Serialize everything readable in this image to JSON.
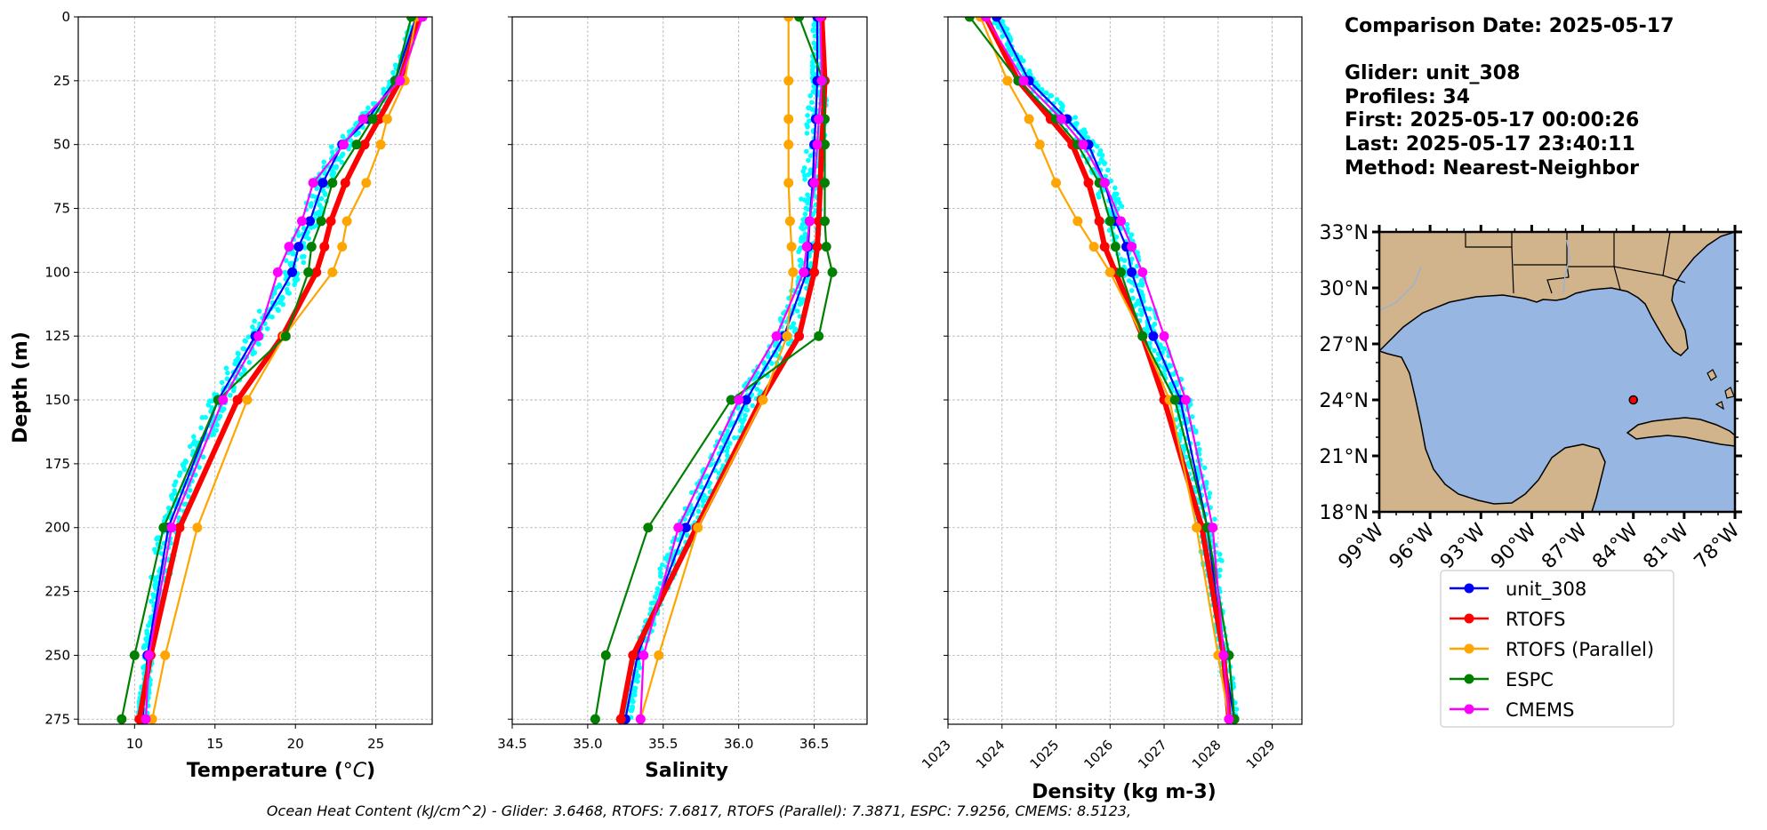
{
  "info": {
    "comparison_date": "Comparison Date: 2025-05-17",
    "glider": "Glider: unit_308",
    "profiles": "Profiles: 34",
    "first": "First: 2025-05-17 00:00:26",
    "last": "Last: 2025-05-17 23:40:11",
    "method": "Method: Nearest-Neighbor"
  },
  "footer": "Ocean Heat Content (kJ/cm^2) - Glider: 3.6468,  RTOFS: 7.6817,  RTOFS (Parallel): 7.3871,  ESPC: 7.9256,  CMEMS: 8.5123,",
  "colors": {
    "glider_scatter": "#00ffff",
    "unit_308": "#0000ff",
    "RTOFS": "#ff0000",
    "RTOFS_parallel": "#ffa500",
    "ESPC": "#008000",
    "CMEMS": "#ff00ff",
    "land": "#d2b48c",
    "ocean": "#97b6e1",
    "grid": "#b0b0b0"
  },
  "legend": [
    {
      "label": "unit_308",
      "color": "#0000ff"
    },
    {
      "label": "RTOFS",
      "color": "#ff0000"
    },
    {
      "label": "RTOFS (Parallel)",
      "color": "#ffa500"
    },
    {
      "label": "ESPC",
      "color": "#008000"
    },
    {
      "label": "CMEMS",
      "color": "#ff00ff"
    }
  ],
  "map": {
    "lat_ticks": [
      "33°N",
      "30°N",
      "27°N",
      "24°N",
      "21°N",
      "18°N"
    ],
    "lon_ticks": [
      "99°W",
      "96°W",
      "93°W",
      "90°W",
      "87°W",
      "84°W",
      "81°W",
      "78°W"
    ],
    "lon_range": [
      -99,
      -78
    ],
    "lat_range": [
      18,
      33
    ],
    "glider_location": {
      "lon": -84.0,
      "lat": 24.0
    }
  },
  "chart_data": [
    {
      "type": "line",
      "xlabel_html": "Temperature (",
      "xlabel_unit": "°C",
      "xlabel_tail": ")",
      "ylabel": "Depth (m)",
      "xlim": [
        6.5,
        28.5
      ],
      "ylim": [
        277,
        0
      ],
      "xticks": [
        10,
        15,
        20,
        25
      ],
      "yticks": [
        0,
        25,
        50,
        75,
        100,
        125,
        150,
        175,
        200,
        225,
        250,
        275
      ],
      "grid": true,
      "depth": [
        0,
        25,
        40,
        50,
        65,
        80,
        90,
        100,
        125,
        150,
        200,
        250,
        275
      ],
      "series": [
        {
          "name": "unit_308",
          "values": [
            27.5,
            26.2,
            24.5,
            22.9,
            21.7,
            20.9,
            20.2,
            19.8,
            17.5,
            15.2,
            12.1,
            10.8,
            10.5
          ]
        },
        {
          "name": "RTOFS",
          "values": [
            27.7,
            26.5,
            25.2,
            24.3,
            23.1,
            22.2,
            21.8,
            21.3,
            19.2,
            16.4,
            12.8,
            11.0,
            10.3
          ]
        },
        {
          "name": "RTOFS (Parallel)",
          "values": [
            27.5,
            26.8,
            25.7,
            25.3,
            24.4,
            23.2,
            22.9,
            22.3,
            19.3,
            17.0,
            13.9,
            11.9,
            11.1
          ]
        },
        {
          "name": "ESPC",
          "values": [
            27.2,
            26.2,
            24.8,
            23.8,
            22.3,
            21.6,
            21.0,
            20.8,
            19.4,
            15.2,
            11.8,
            10.0,
            9.2
          ]
        },
        {
          "name": "CMEMS",
          "values": [
            27.9,
            26.5,
            24.2,
            23.0,
            21.1,
            20.4,
            19.6,
            18.9,
            17.7,
            15.5,
            12.3,
            10.9,
            10.7
          ]
        }
      ]
    },
    {
      "type": "line",
      "xlabel": "Salinity",
      "xlim": [
        34.5,
        36.85
      ],
      "ylim": [
        277,
        0
      ],
      "xticks": [
        34.5,
        35.0,
        35.5,
        36.0,
        36.5
      ],
      "xticklabels": [
        "34.5",
        "35.0",
        "35.5",
        "36.0",
        "36.5"
      ],
      "grid": true,
      "depth": [
        0,
        25,
        40,
        50,
        65,
        80,
        90,
        100,
        125,
        150,
        200,
        250,
        275
      ],
      "series": [
        {
          "name": "unit_308",
          "values": [
            36.52,
            36.52,
            36.51,
            36.5,
            36.49,
            36.47,
            36.46,
            36.45,
            36.3,
            36.05,
            35.65,
            35.33,
            35.25
          ]
        },
        {
          "name": "RTOFS",
          "values": [
            36.55,
            36.57,
            36.56,
            36.55,
            36.54,
            36.53,
            36.52,
            36.5,
            36.4,
            36.15,
            35.72,
            35.3,
            35.22
          ]
        },
        {
          "name": "RTOFS (Parallel)",
          "values": [
            36.33,
            36.33,
            36.33,
            36.33,
            36.33,
            36.34,
            36.35,
            36.36,
            36.32,
            36.16,
            35.73,
            35.47,
            35.35
          ]
        },
        {
          "name": "ESPC",
          "values": [
            36.4,
            36.56,
            36.57,
            36.57,
            36.57,
            36.57,
            36.58,
            36.62,
            36.53,
            35.95,
            35.4,
            35.12,
            35.05
          ]
        },
        {
          "name": "CMEMS",
          "values": [
            36.54,
            36.55,
            36.53,
            36.52,
            36.5,
            36.47,
            36.45,
            36.43,
            36.25,
            36.0,
            35.6,
            35.37,
            35.35
          ]
        }
      ]
    },
    {
      "type": "line",
      "xlabel": "Density (kg m-3)",
      "xlim": [
        1023,
        1029.55
      ],
      "ylim": [
        277,
        0
      ],
      "xticks": [
        1023,
        1024,
        1025,
        1026,
        1027,
        1028,
        1029
      ],
      "grid": true,
      "depth": [
        0,
        25,
        40,
        50,
        65,
        80,
        90,
        100,
        125,
        150,
        200,
        250,
        275
      ],
      "series": [
        {
          "name": "unit_308",
          "values": [
            1023.9,
            1024.5,
            1025.2,
            1025.6,
            1025.9,
            1026.1,
            1026.3,
            1026.4,
            1026.8,
            1027.3,
            1027.8,
            1028.1,
            1028.3
          ]
        },
        {
          "name": "RTOFS",
          "values": [
            1023.7,
            1024.3,
            1024.9,
            1025.3,
            1025.6,
            1025.8,
            1025.9,
            1026.1,
            1026.6,
            1027.0,
            1027.7,
            1028.1,
            1028.2
          ]
        },
        {
          "name": "RTOFS (Parallel)",
          "values": [
            1023.6,
            1024.1,
            1024.5,
            1024.7,
            1025.0,
            1025.4,
            1025.7,
            1026.0,
            1026.6,
            1027.1,
            1027.6,
            1028.0,
            1028.2
          ]
        },
        {
          "name": "ESPC",
          "values": [
            1023.4,
            1024.3,
            1025.0,
            1025.4,
            1025.8,
            1026.0,
            1026.1,
            1026.2,
            1026.6,
            1027.2,
            1027.8,
            1028.2,
            1028.3
          ]
        },
        {
          "name": "CMEMS",
          "values": [
            1023.7,
            1024.4,
            1025.1,
            1025.5,
            1025.9,
            1026.2,
            1026.4,
            1026.6,
            1027.0,
            1027.4,
            1027.9,
            1028.1,
            1028.2
          ]
        }
      ]
    }
  ]
}
